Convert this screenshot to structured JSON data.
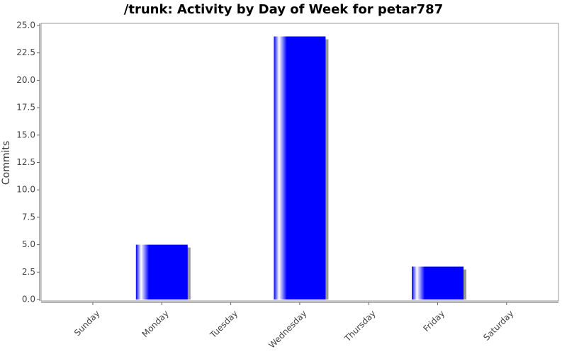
{
  "chart_data": {
    "type": "bar",
    "title": "/trunk: Activity by Day of Week for petar787",
    "y_label": "Commits",
    "categories": [
      "Sunday",
      "Monday",
      "Tuesday",
      "Wednesday",
      "Thursday",
      "Friday",
      "Saturday"
    ],
    "values": [
      0,
      5,
      0,
      24,
      0,
      3,
      0
    ],
    "color": "#0000ff",
    "ylim": [
      0,
      25
    ],
    "yticks": [
      {
        "value": 0,
        "label": "0.0"
      },
      2.5,
      {
        "value": 5,
        "label": "5.0"
      },
      7.5,
      {
        "value": 10,
        "label": "10.0"
      },
      12.5,
      {
        "value": 15,
        "label": "15.0"
      },
      17.5,
      {
        "value": 20,
        "label": "20.0"
      },
      22.5,
      {
        "value": 25,
        "label": "25.0"
      }
    ],
    "grid": false
  }
}
